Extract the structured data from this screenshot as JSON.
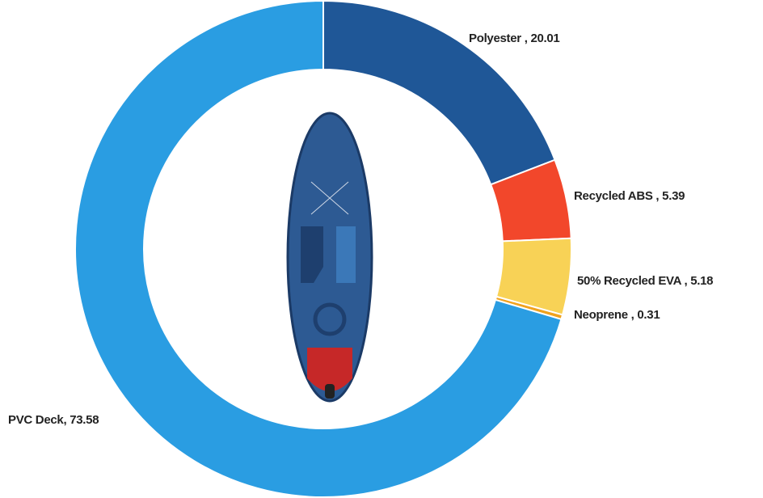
{
  "chart_data": {
    "type": "donut",
    "values": [
      20.01,
      5.39,
      5.18,
      0.31,
      73.58
    ],
    "value_labels": [
      "Polyester , 20.01",
      "Recycled ABS , 5.39",
      "50% Recycled EVA , 5.18",
      "Neoprene , 0.31",
      "PVC Deck, 73.58"
    ],
    "colors": [
      "#1f5797",
      "#f2472b",
      "#f8d256",
      "#f0a21e",
      "#2a9de2"
    ]
  }
}
